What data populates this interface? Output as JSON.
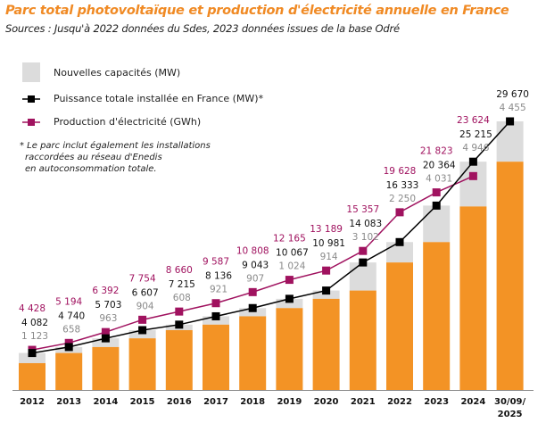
{
  "title": "Parc total photovoltaïque et production d'électricité annuelle en France",
  "subtitle": "Sources : Jusqu'à 2022 données du Sdes, 2023 données issues de la base Odré",
  "note": [
    "* Le parc inclut également les installations",
    "raccordées au réseau d'Enedis",
    "en autoconsommation totale."
  ],
  "colors": {
    "title": "#F08A24",
    "existing": "#F39325",
    "new": "#DCDCDC",
    "total": "#000000",
    "production": "#A0125F",
    "new_label": "#8A8A8A"
  },
  "chart_data": {
    "type": "bar",
    "title": "Parc total photovoltaïque et production d'électricité annuelle en France",
    "categories": [
      "2012",
      "2013",
      "2014",
      "2015",
      "2016",
      "2017",
      "2018",
      "2019",
      "2020",
      "2021",
      "2022",
      "2023",
      "2024",
      "30/09/2025"
    ],
    "legend_position": "top-left",
    "grid": false,
    "ylim": [
      0,
      30000
    ],
    "series": [
      {
        "name": "Nouvelles capacités (MW)",
        "kind": "stacked-bar-top",
        "values": [
          1123,
          658,
          963,
          904,
          608,
          921,
          907,
          1024,
          914,
          3102,
          2250,
          4031,
          4946,
          4455
        ],
        "labels": [
          "1 123",
          "658",
          "963",
          "904",
          "608",
          "921",
          "907",
          "1 024",
          "914",
          "3 102",
          "2 250",
          "4 031",
          "4 946",
          "4 455"
        ]
      },
      {
        "name": "Puissance totale installée en France (MW)*",
        "kind": "line",
        "values": [
          4082,
          4740,
          5703,
          6607,
          7215,
          8136,
          9043,
          10067,
          10981,
          14083,
          16333,
          20364,
          25215,
          29670
        ],
        "labels": [
          "4 082",
          "4 740",
          "5 703",
          "6 607",
          "7 215",
          "8 136",
          "9 043",
          "10 067",
          "10 981",
          "14 083",
          "16 333",
          "20 364",
          "25 215",
          "29 670"
        ]
      },
      {
        "name": "Production d'électricité (GWh)",
        "kind": "line",
        "values": [
          4428,
          5194,
          6392,
          7754,
          8660,
          9587,
          10808,
          12165,
          13189,
          15357,
          19628,
          21823,
          23624,
          null
        ],
        "labels": [
          "4 428",
          "5 194",
          "6 392",
          "7 754",
          "8 660",
          "9 587",
          "10 808",
          "12 165",
          "13 189",
          "15 357",
          "19 628",
          "21 823",
          "23 624",
          ""
        ]
      }
    ]
  }
}
